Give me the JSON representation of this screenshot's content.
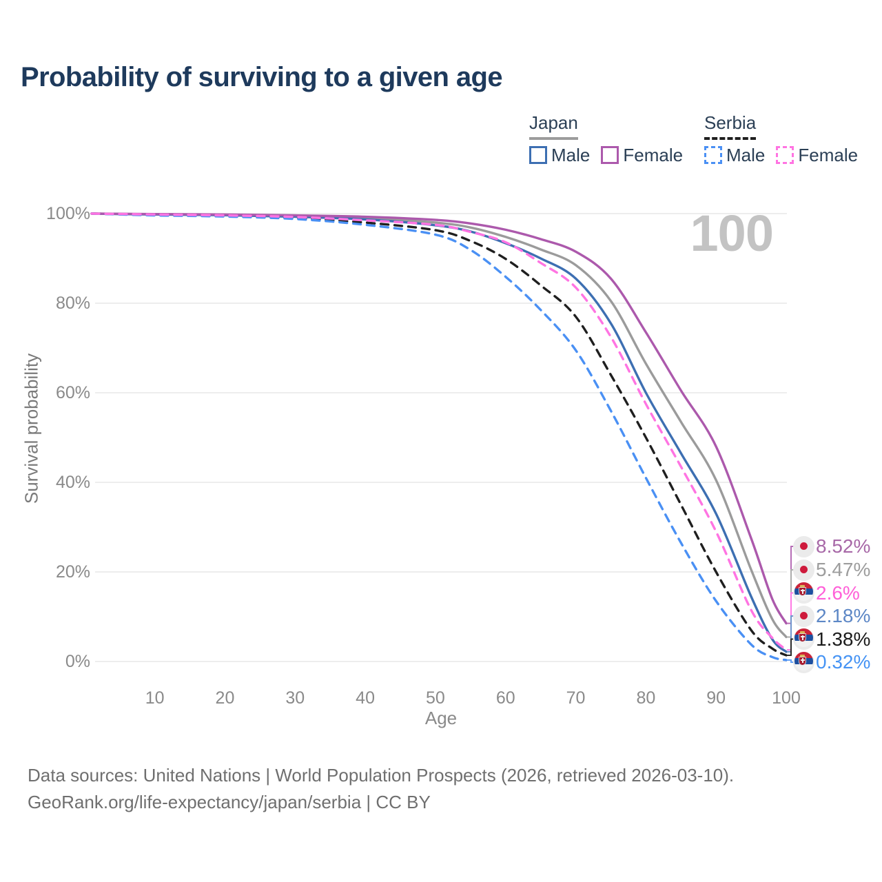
{
  "header": {
    "title": "Probability of surviving to a given age"
  },
  "watermark": "100",
  "legend": {
    "groups": [
      {
        "label": "Japan",
        "underline_style": "solid",
        "underline_color": "#9c9c9c",
        "items": [
          {
            "label": "Male",
            "color": "#3d6fb2",
            "dashed": false
          },
          {
            "label": "Female",
            "color": "#ac59ac",
            "dashed": false
          }
        ]
      },
      {
        "label": "Serbia",
        "underline_style": "dashed",
        "underline_color": "#1f1f1f",
        "items": [
          {
            "label": "Male",
            "color": "#4a90f4",
            "dashed": true
          },
          {
            "label": "Female",
            "color": "#ff74e2",
            "dashed": true
          }
        ]
      }
    ]
  },
  "chart_data": {
    "type": "line",
    "title": "Probability of surviving to a given age",
    "xlabel": "Age",
    "ylabel": "Survival probability",
    "xlim": [
      1,
      100
    ],
    "ylim": [
      0,
      100
    ],
    "grid": true,
    "legend_position": "top-right",
    "x_ticks": [
      "10",
      "20",
      "30",
      "40",
      "50",
      "60",
      "70",
      "80",
      "90",
      "100"
    ],
    "x_tick_values": [
      10,
      20,
      30,
      40,
      50,
      60,
      70,
      80,
      90,
      100
    ],
    "y_ticks": [
      "0%",
      "20%",
      "40%",
      "60%",
      "80%",
      "100%"
    ],
    "y_tick_values": [
      0,
      20,
      40,
      60,
      80,
      100
    ],
    "ages": [
      1,
      10,
      20,
      30,
      40,
      50,
      55,
      60,
      65,
      70,
      75,
      80,
      85,
      90,
      95,
      98,
      100
    ],
    "series": [
      {
        "name": "Japan Female",
        "country": "Japan",
        "group_line": false,
        "color": "#ac59ac",
        "dashed": false,
        "values": [
          100,
          99.9,
          99.8,
          99.6,
          99.3,
          98.6,
          97.8,
          96.4,
          94.3,
          91.5,
          85.5,
          73.5,
          60.5,
          48,
          27.5,
          14,
          8.52
        ],
        "end_label": "8.52%",
        "end_label_color": "#a768a7",
        "connector_color": "#b66db6",
        "flag": "japan"
      },
      {
        "name": "Japan (both sexes)",
        "country": "Japan",
        "group_line": true,
        "color": "#9b9b9b",
        "dashed": false,
        "values": [
          100,
          99.85,
          99.7,
          99.45,
          99,
          98,
          96.9,
          94.8,
          92,
          88.5,
          80.5,
          66.5,
          53.5,
          40.5,
          20.5,
          9.5,
          5.47
        ],
        "end_label": "5.47%",
        "end_label_color": "#9d9d9d",
        "connector_color": "#ababab",
        "flag": "japan"
      },
      {
        "name": "Serbia Female",
        "country": "Serbia",
        "group_line": false,
        "color": "#ff74e2",
        "dashed": true,
        "values": [
          100,
          99.8,
          99.6,
          99.25,
          98.5,
          97.5,
          95.9,
          93.6,
          89,
          83.5,
          72.5,
          57.5,
          43.5,
          29,
          11.5,
          5.3,
          2.6
        ],
        "end_label": "2.6%",
        "end_label_color": "#ff5fd8",
        "connector_color": "#ff7ae4",
        "flag": "serbia"
      },
      {
        "name": "Japan Male",
        "country": "Japan",
        "group_line": false,
        "color": "#3d6fb2",
        "dashed": false,
        "values": [
          100,
          99.8,
          99.65,
          99.3,
          98.7,
          97.4,
          96,
          93.4,
          90,
          85.5,
          75.5,
          60,
          46.5,
          33,
          14.5,
          5,
          2.18
        ],
        "end_label": "2.18%",
        "end_label_color": "#5d87c6",
        "connector_color": "#6f93cc",
        "flag": "japan"
      },
      {
        "name": "Serbia (both sexes)",
        "country": "Serbia",
        "group_line": true,
        "color": "#1f1f1f",
        "dashed": true,
        "values": [
          100,
          99.7,
          99.5,
          99,
          98,
          96.3,
          93.9,
          89.9,
          84,
          77,
          64,
          50,
          35,
          20,
          7,
          2.9,
          1.38
        ],
        "end_label": "1.38%",
        "end_label_color": "#1b1b1b",
        "connector_color": "#2a2a2a",
        "flag": "serbia"
      },
      {
        "name": "Serbia Male",
        "country": "Serbia",
        "group_line": false,
        "color": "#4a90f4",
        "dashed": true,
        "values": [
          100,
          99.6,
          99.35,
          98.8,
          97.5,
          95.3,
          91.9,
          85.9,
          78.5,
          69.5,
          56,
          41,
          26.5,
          13.5,
          3.8,
          1,
          0.32
        ],
        "end_label": "0.32%",
        "end_label_color": "#4593f4",
        "connector_color": "#5f9ef5",
        "flag": "serbia"
      }
    ]
  },
  "footer": {
    "line1": "Data sources: United Nations | World Population Prospects (2026, retrieved 2026-03-10).",
    "line2": "GeoRank.org/life-expectancy/japan/serbia | CC BY"
  }
}
